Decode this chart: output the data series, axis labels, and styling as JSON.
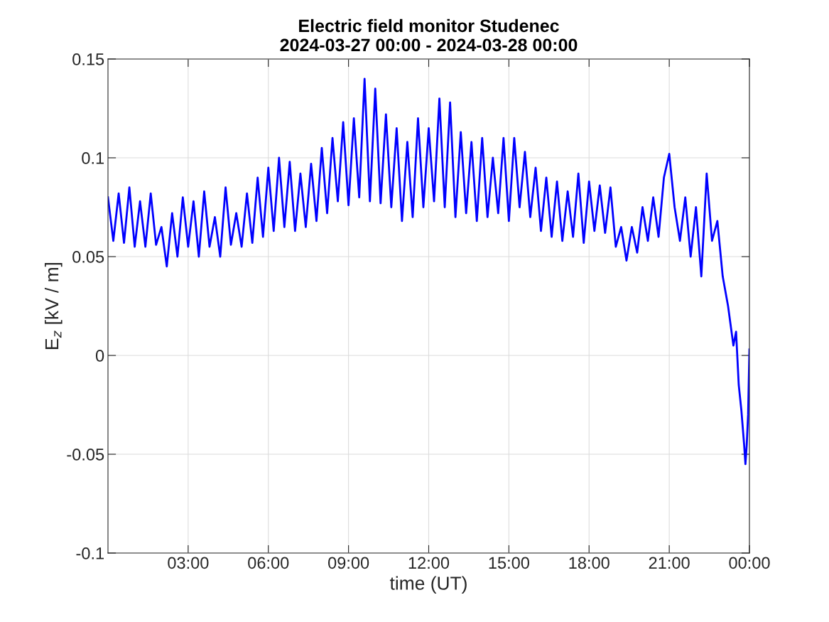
{
  "chart_data": {
    "type": "line",
    "title": "Electric field monitor Studenec\n2024-03-27 00:00 - 2024-03-28 00:00",
    "xlabel": "time (UT)",
    "ylabel": "E$_{z}$ [kV / m]",
    "xlim": [
      0,
      24
    ],
    "xticks": [
      {
        "value": 3,
        "label": "03:00"
      },
      {
        "value": 6,
        "label": "06:00"
      },
      {
        "value": 9,
        "label": "09:00"
      },
      {
        "value": 12,
        "label": "12:00"
      },
      {
        "value": 15,
        "label": "15:00"
      },
      {
        "value": 18,
        "label": "18:00"
      },
      {
        "value": 21,
        "label": "21:00"
      },
      {
        "value": 24,
        "label": "00:00"
      }
    ],
    "ylim": [
      -0.1,
      0.15
    ],
    "yticks": [
      {
        "value": -0.1,
        "label": "-0.1"
      },
      {
        "value": -0.05,
        "label": "-0.05"
      },
      0,
      0.05,
      0.1,
      0.15
    ],
    "grid": true,
    "legend": false,
    "marker": "none",
    "line_style": "solid",
    "series": [
      {
        "color": "#0000ff",
        "x": [
          0.0,
          0.2,
          0.4,
          0.6,
          0.8,
          1.0,
          1.2,
          1.4,
          1.6,
          1.8,
          2.0,
          2.2,
          2.4,
          2.6,
          2.8,
          3.0,
          3.2,
          3.4,
          3.6,
          3.8,
          4.0,
          4.2,
          4.4,
          4.6,
          4.8,
          5.0,
          5.2,
          5.4,
          5.6,
          5.8,
          6.0,
          6.2,
          6.4,
          6.6,
          6.8,
          7.0,
          7.2,
          7.4,
          7.6,
          7.8,
          8.0,
          8.2,
          8.4,
          8.6,
          8.8,
          9.0,
          9.2,
          9.4,
          9.6,
          9.8,
          10.0,
          10.2,
          10.4,
          10.6,
          10.8,
          11.0,
          11.2,
          11.4,
          11.6,
          11.8,
          12.0,
          12.2,
          12.4,
          12.6,
          12.8,
          13.0,
          13.2,
          13.4,
          13.6,
          13.8,
          14.0,
          14.2,
          14.4,
          14.6,
          14.8,
          15.0,
          15.2,
          15.4,
          15.6,
          15.8,
          16.0,
          16.2,
          16.4,
          16.6,
          16.8,
          17.0,
          17.2,
          17.4,
          17.6,
          17.8,
          18.0,
          18.2,
          18.4,
          18.6,
          18.8,
          19.0,
          19.2,
          19.4,
          19.6,
          19.8,
          20.0,
          20.2,
          20.4,
          20.6,
          20.8,
          21.0,
          21.2,
          21.4,
          21.6,
          21.8,
          22.0,
          22.2,
          22.4,
          22.6,
          22.8,
          23.0,
          23.2,
          23.4,
          23.5,
          23.6,
          23.7,
          23.8,
          23.85,
          23.9,
          23.95,
          24.0
        ],
        "values": [
          0.08,
          0.058,
          0.082,
          0.057,
          0.085,
          0.055,
          0.078,
          0.055,
          0.082,
          0.056,
          0.065,
          0.045,
          0.072,
          0.05,
          0.08,
          0.055,
          0.078,
          0.05,
          0.083,
          0.055,
          0.07,
          0.05,
          0.085,
          0.056,
          0.072,
          0.055,
          0.082,
          0.057,
          0.09,
          0.06,
          0.095,
          0.063,
          0.1,
          0.065,
          0.098,
          0.063,
          0.092,
          0.065,
          0.097,
          0.068,
          0.105,
          0.072,
          0.11,
          0.078,
          0.118,
          0.076,
          0.12,
          0.08,
          0.14,
          0.078,
          0.135,
          0.077,
          0.122,
          0.075,
          0.115,
          0.068,
          0.108,
          0.07,
          0.12,
          0.075,
          0.115,
          0.078,
          0.13,
          0.075,
          0.128,
          0.07,
          0.113,
          0.072,
          0.108,
          0.068,
          0.11,
          0.07,
          0.1,
          0.072,
          0.11,
          0.068,
          0.11,
          0.075,
          0.103,
          0.07,
          0.095,
          0.063,
          0.09,
          0.06,
          0.088,
          0.058,
          0.083,
          0.06,
          0.092,
          0.057,
          0.088,
          0.063,
          0.086,
          0.062,
          0.085,
          0.055,
          0.065,
          0.048,
          0.065,
          0.052,
          0.075,
          0.058,
          0.08,
          0.06,
          0.09,
          0.102,
          0.075,
          0.058,
          0.08,
          0.05,
          0.075,
          0.04,
          0.092,
          0.058,
          0.068,
          0.04,
          0.025,
          0.005,
          0.012,
          -0.015,
          -0.028,
          -0.045,
          -0.055,
          -0.045,
          -0.03,
          0.003
        ]
      }
    ]
  }
}
